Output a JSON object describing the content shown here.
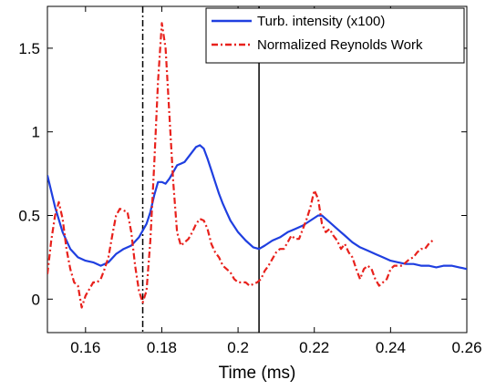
{
  "chart_data": {
    "type": "line",
    "title": "",
    "xlabel": "Time (ms)",
    "ylabel": "",
    "xlim": [
      0.15,
      0.26
    ],
    "ylim": [
      -0.2,
      1.75
    ],
    "grid": false,
    "legend": "top-right",
    "xticks": [
      {
        "value": 0.16,
        "label": "0.16"
      },
      {
        "value": 0.18,
        "label": "0.18"
      },
      {
        "value": 0.2,
        "label": "0.2"
      },
      {
        "value": 0.22,
        "label": "0.22"
      },
      {
        "value": 0.24,
        "label": "0.24"
      },
      {
        "value": 0.26,
        "label": "0.26"
      }
    ],
    "yticks": [
      {
        "value": 0,
        "label": "0"
      },
      {
        "value": 0.5,
        "label": "0.5"
      },
      {
        "value": 1,
        "label": "1"
      },
      {
        "value": 1.5,
        "label": "1.5"
      }
    ],
    "vlines": [
      {
        "x": 0.175,
        "style": "dashdot",
        "color": "#000000"
      },
      {
        "x": 0.2055,
        "style": "solid",
        "color": "#000000"
      }
    ],
    "series": [
      {
        "name": "Turb. intensity (x100)",
        "color": "#1f3fe0",
        "style": "solid",
        "x": [
          0.15,
          0.152,
          0.154,
          0.156,
          0.158,
          0.16,
          0.162,
          0.164,
          0.166,
          0.168,
          0.17,
          0.172,
          0.174,
          0.176,
          0.177,
          0.178,
          0.179,
          0.18,
          0.181,
          0.182,
          0.183,
          0.184,
          0.185,
          0.186,
          0.187,
          0.188,
          0.189,
          0.19,
          0.191,
          0.192,
          0.193,
          0.194,
          0.195,
          0.196,
          0.197,
          0.198,
          0.2,
          0.202,
          0.204,
          0.2055,
          0.207,
          0.209,
          0.211,
          0.213,
          0.215,
          0.217,
          0.219,
          0.221,
          0.222,
          0.224,
          0.226,
          0.228,
          0.23,
          0.232,
          0.234,
          0.236,
          0.238,
          0.24,
          0.242,
          0.244,
          0.246,
          0.248,
          0.25,
          0.252,
          0.254,
          0.256,
          0.258,
          0.26
        ],
        "values": [
          0.74,
          0.55,
          0.4,
          0.3,
          0.25,
          0.23,
          0.22,
          0.2,
          0.22,
          0.27,
          0.3,
          0.32,
          0.37,
          0.45,
          0.52,
          0.62,
          0.7,
          0.7,
          0.69,
          0.72,
          0.76,
          0.8,
          0.81,
          0.82,
          0.85,
          0.88,
          0.91,
          0.92,
          0.9,
          0.84,
          0.77,
          0.7,
          0.63,
          0.57,
          0.52,
          0.47,
          0.4,
          0.35,
          0.31,
          0.3,
          0.32,
          0.35,
          0.37,
          0.4,
          0.42,
          0.44,
          0.47,
          0.5,
          0.5,
          0.46,
          0.42,
          0.38,
          0.34,
          0.31,
          0.29,
          0.27,
          0.25,
          0.23,
          0.22,
          0.21,
          0.21,
          0.2,
          0.2,
          0.19,
          0.2,
          0.2,
          0.19,
          0.18
        ]
      },
      {
        "name": "Normalized Reynolds Work",
        "color": "#e8211c",
        "style": "dashdot",
        "x": [
          0.15,
          0.151,
          0.152,
          0.153,
          0.154,
          0.155,
          0.156,
          0.157,
          0.158,
          0.159,
          0.16,
          0.161,
          0.162,
          0.163,
          0.164,
          0.165,
          0.166,
          0.167,
          0.168,
          0.169,
          0.17,
          0.171,
          0.172,
          0.173,
          0.174,
          0.175,
          0.176,
          0.177,
          0.178,
          0.179,
          0.18,
          0.181,
          0.182,
          0.183,
          0.184,
          0.185,
          0.186,
          0.187,
          0.188,
          0.189,
          0.19,
          0.191,
          0.192,
          0.193,
          0.194,
          0.195,
          0.196,
          0.197,
          0.198,
          0.199,
          0.2,
          0.201,
          0.202,
          0.203,
          0.204,
          0.205,
          0.206,
          0.207,
          0.208,
          0.209,
          0.21,
          0.211,
          0.212,
          0.213,
          0.214,
          0.215,
          0.216,
          0.217,
          0.218,
          0.219,
          0.22,
          0.221,
          0.222,
          0.223,
          0.224,
          0.225,
          0.226,
          0.227,
          0.228,
          0.229,
          0.23,
          0.231,
          0.232,
          0.233,
          0.234,
          0.235,
          0.236,
          0.237,
          0.238,
          0.239,
          0.24,
          0.241,
          0.242,
          0.243,
          0.244,
          0.245,
          0.246,
          0.247,
          0.248,
          0.249,
          0.25,
          0.251
        ],
        "values": [
          0.15,
          0.35,
          0.5,
          0.58,
          0.48,
          0.3,
          0.18,
          0.1,
          0.08,
          -0.05,
          0.02,
          0.06,
          0.1,
          0.1,
          0.12,
          0.18,
          0.25,
          0.38,
          0.5,
          0.54,
          0.53,
          0.52,
          0.4,
          0.2,
          0.05,
          -0.02,
          0.05,
          0.35,
          0.8,
          1.3,
          1.65,
          1.5,
          1.1,
          0.7,
          0.4,
          0.32,
          0.34,
          0.36,
          0.4,
          0.45,
          0.48,
          0.47,
          0.42,
          0.33,
          0.28,
          0.25,
          0.2,
          0.18,
          0.16,
          0.12,
          0.1,
          0.1,
          0.1,
          0.08,
          0.09,
          0.1,
          0.12,
          0.17,
          0.2,
          0.24,
          0.28,
          0.3,
          0.3,
          0.34,
          0.38,
          0.36,
          0.36,
          0.42,
          0.48,
          0.55,
          0.65,
          0.6,
          0.45,
          0.4,
          0.42,
          0.38,
          0.35,
          0.3,
          0.33,
          0.28,
          0.25,
          0.18,
          0.12,
          0.18,
          0.2,
          0.18,
          0.12,
          0.08,
          0.1,
          0.12,
          0.18,
          0.2,
          0.2,
          0.2,
          0.22,
          0.24,
          0.25,
          0.28,
          0.3,
          0.3,
          0.33,
          0.35
        ]
      }
    ]
  }
}
